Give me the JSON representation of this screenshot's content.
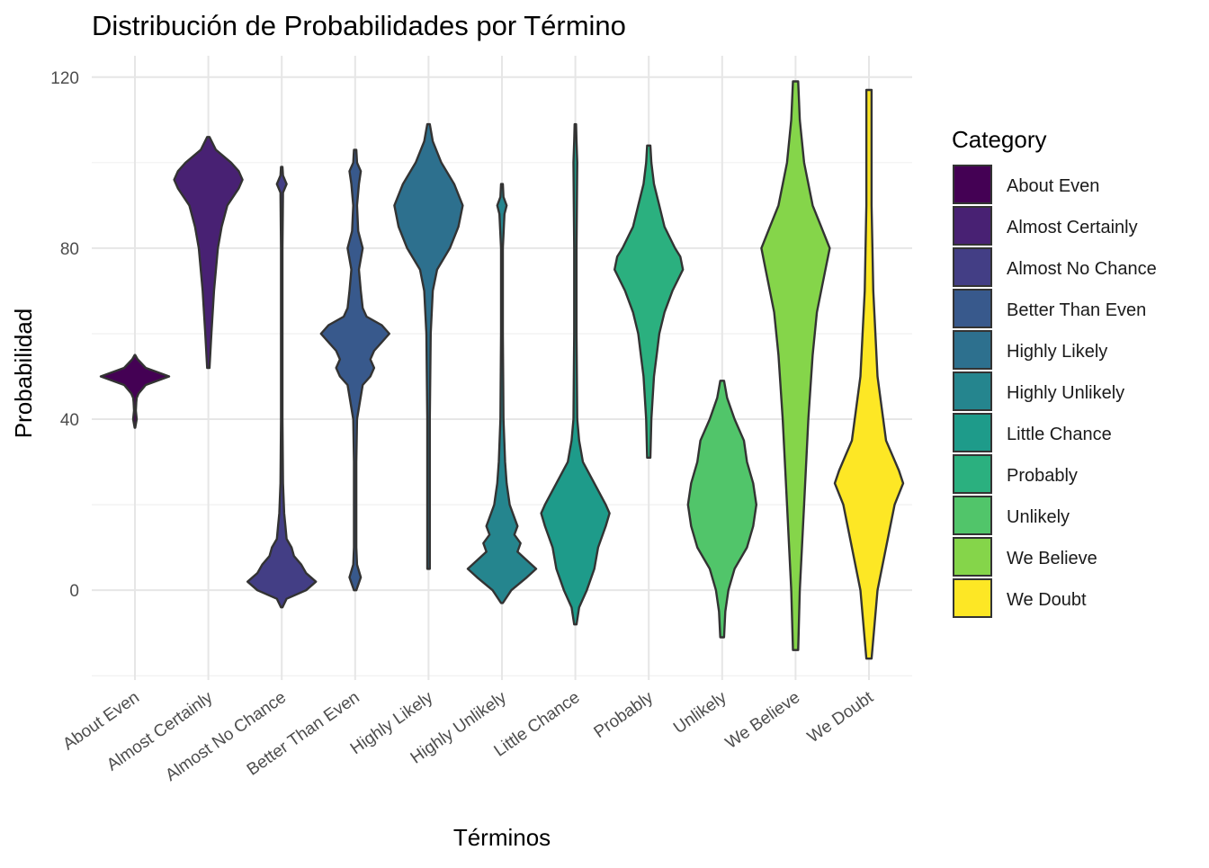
{
  "chart_data": {
    "type": "violin",
    "title": "Distribución de Probabilidades por Término",
    "xlabel": "Términos",
    "ylabel": "Probabilidad",
    "ylim": [
      -21,
      125
    ],
    "yticks": [
      0,
      40,
      80,
      120
    ],
    "grid": true,
    "legend": {
      "title": "Category",
      "placement": "right",
      "entries": [
        {
          "name": "About Even",
          "color": "#440154"
        },
        {
          "name": "Almost Certainly",
          "color": "#482173"
        },
        {
          "name": "Almost No Chance",
          "color": "#433E85"
        },
        {
          "name": "Better Than Even",
          "color": "#38598C"
        },
        {
          "name": "Highly Likely",
          "color": "#2D708E"
        },
        {
          "name": "Highly Unlikely",
          "color": "#25858E"
        },
        {
          "name": "Little Chance",
          "color": "#1E9B8A"
        },
        {
          "name": "Probably",
          "color": "#2BB07F"
        },
        {
          "name": "Unlikely",
          "color": "#51C56A"
        },
        {
          "name": "We Believe",
          "color": "#85D54A"
        },
        {
          "name": "We Doubt",
          "color": "#FDE725"
        }
      ]
    },
    "categories": [
      "About Even",
      "Almost Certainly",
      "Almost No Chance",
      "Better Than Even",
      "Highly Likely",
      "Highly Unlikely",
      "Little Chance",
      "Probably",
      "Unlikely",
      "We Believe",
      "We Doubt"
    ],
    "series": [
      {
        "category": "About Even",
        "color": "#440154",
        "profile": [
          [
            38,
            0.3
          ],
          [
            40,
            2
          ],
          [
            42,
            1
          ],
          [
            44,
            1.5
          ],
          [
            45,
            2
          ],
          [
            46,
            4
          ],
          [
            48,
            12
          ],
          [
            50,
            38
          ],
          [
            52,
            12
          ],
          [
            54,
            3
          ],
          [
            55,
            0.3
          ]
        ]
      },
      {
        "category": "Almost Certainly",
        "color": "#482173",
        "profile": [
          [
            52,
            0.3
          ],
          [
            60,
            0.8
          ],
          [
            70,
            1.5
          ],
          [
            80,
            2.5
          ],
          [
            85,
            3.5
          ],
          [
            90,
            5
          ],
          [
            94,
            8
          ],
          [
            96,
            9
          ],
          [
            98,
            8
          ],
          [
            100,
            6
          ],
          [
            103,
            2
          ],
          [
            106,
            0.3
          ]
        ]
      },
      {
        "category": "Almost No Chance",
        "color": "#433E85",
        "profile": [
          [
            -4,
            0.3
          ],
          [
            -2,
            2
          ],
          [
            0,
            10
          ],
          [
            2,
            14
          ],
          [
            4,
            10
          ],
          [
            6,
            8
          ],
          [
            8,
            5
          ],
          [
            10,
            4
          ],
          [
            12,
            2
          ],
          [
            15,
            1.5
          ],
          [
            18,
            1
          ],
          [
            25,
            0.5
          ],
          [
            40,
            0.3
          ],
          [
            60,
            0.3
          ],
          [
            80,
            0.3
          ],
          [
            93,
            0.5
          ],
          [
            95,
            2
          ],
          [
            97,
            0.5
          ],
          [
            99,
            0.3
          ]
        ]
      },
      {
        "category": "Better Than Even",
        "color": "#38598C",
        "profile": [
          [
            0,
            0.3
          ],
          [
            3,
            1.5
          ],
          [
            6,
            0.5
          ],
          [
            10,
            0.3
          ],
          [
            20,
            0.3
          ],
          [
            30,
            0.3
          ],
          [
            40,
            0.5
          ],
          [
            48,
            2
          ],
          [
            50,
            4
          ],
          [
            52,
            5
          ],
          [
            54,
            4
          ],
          [
            56,
            5
          ],
          [
            58,
            7
          ],
          [
            60,
            9
          ],
          [
            62,
            7
          ],
          [
            64,
            3
          ],
          [
            66,
            2
          ],
          [
            70,
            1.5
          ],
          [
            75,
            1
          ],
          [
            80,
            2
          ],
          [
            84,
            0.8
          ],
          [
            90,
            0.5
          ],
          [
            95,
            1
          ],
          [
            98,
            1.5
          ],
          [
            100,
            0.5
          ],
          [
            103,
            0.3
          ]
        ]
      },
      {
        "category": "Highly Likely",
        "color": "#2D708E",
        "profile": [
          [
            5,
            0.3
          ],
          [
            20,
            0.3
          ],
          [
            40,
            0.3
          ],
          [
            60,
            0.5
          ],
          [
            70,
            1
          ],
          [
            75,
            2
          ],
          [
            80,
            5
          ],
          [
            85,
            7
          ],
          [
            90,
            8
          ],
          [
            95,
            6
          ],
          [
            100,
            3
          ],
          [
            105,
            1
          ],
          [
            109,
            0.3
          ]
        ]
      },
      {
        "category": "Highly Unlikely",
        "color": "#25858E",
        "profile": [
          [
            -3,
            0.3
          ],
          [
            0,
            3
          ],
          [
            3,
            8
          ],
          [
            5,
            11
          ],
          [
            7,
            8
          ],
          [
            9,
            5
          ],
          [
            11,
            6
          ],
          [
            13,
            4
          ],
          [
            15,
            5
          ],
          [
            17,
            4
          ],
          [
            20,
            2.5
          ],
          [
            25,
            1.5
          ],
          [
            30,
            1
          ],
          [
            40,
            0.5
          ],
          [
            60,
            0.3
          ],
          [
            80,
            0.3
          ],
          [
            88,
            0.8
          ],
          [
            90,
            1.5
          ],
          [
            92,
            0.5
          ],
          [
            95,
            0.3
          ]
        ]
      },
      {
        "category": "Little Chance",
        "color": "#1E9B8A",
        "profile": [
          [
            -8,
            0.3
          ],
          [
            -4,
            1
          ],
          [
            0,
            3
          ],
          [
            5,
            5
          ],
          [
            10,
            6
          ],
          [
            15,
            8
          ],
          [
            18,
            9
          ],
          [
            20,
            8
          ],
          [
            25,
            5
          ],
          [
            30,
            2
          ],
          [
            35,
            1
          ],
          [
            40,
            0.5
          ],
          [
            60,
            0.3
          ],
          [
            80,
            0.3
          ],
          [
            100,
            0.5
          ],
          [
            105,
            0.3
          ],
          [
            109,
            0.2
          ]
        ]
      },
      {
        "category": "Probably",
        "color": "#2BB07F",
        "profile": [
          [
            31,
            0.3
          ],
          [
            40,
            0.5
          ],
          [
            50,
            1
          ],
          [
            55,
            1.5
          ],
          [
            60,
            2
          ],
          [
            65,
            3
          ],
          [
            70,
            4.5
          ],
          [
            75,
            6.5
          ],
          [
            78,
            6
          ],
          [
            80,
            5
          ],
          [
            85,
            3
          ],
          [
            90,
            2
          ],
          [
            95,
            1
          ],
          [
            100,
            0.5
          ],
          [
            104,
            0.3
          ]
        ]
      },
      {
        "category": "Unlikely",
        "color": "#51C56A",
        "profile": [
          [
            -11,
            0.3
          ],
          [
            -5,
            0.5
          ],
          [
            0,
            1
          ],
          [
            5,
            2
          ],
          [
            10,
            4
          ],
          [
            15,
            5
          ],
          [
            20,
            5.5
          ],
          [
            25,
            5
          ],
          [
            30,
            4
          ],
          [
            35,
            3.5
          ],
          [
            40,
            2
          ],
          [
            45,
            0.8
          ],
          [
            49,
            0.3
          ]
        ]
      },
      {
        "category": "We Believe",
        "color": "#85D54A",
        "profile": [
          [
            -14,
            0.3
          ],
          [
            0,
            0.5
          ],
          [
            20,
            1
          ],
          [
            40,
            1.5
          ],
          [
            55,
            2
          ],
          [
            65,
            2.5
          ],
          [
            75,
            3.5
          ],
          [
            80,
            4
          ],
          [
            85,
            3
          ],
          [
            90,
            2
          ],
          [
            100,
            1
          ],
          [
            110,
            0.5
          ],
          [
            119,
            0.3
          ]
        ]
      },
      {
        "category": "We Doubt",
        "color": "#FDE725",
        "profile": [
          [
            -16,
            0.3
          ],
          [
            0,
            1
          ],
          [
            10,
            2
          ],
          [
            20,
            3
          ],
          [
            25,
            4
          ],
          [
            28,
            3.5
          ],
          [
            35,
            2
          ],
          [
            50,
            1
          ],
          [
            70,
            0.5
          ],
          [
            90,
            0.3
          ],
          [
            117,
            0.3
          ]
        ]
      }
    ]
  }
}
